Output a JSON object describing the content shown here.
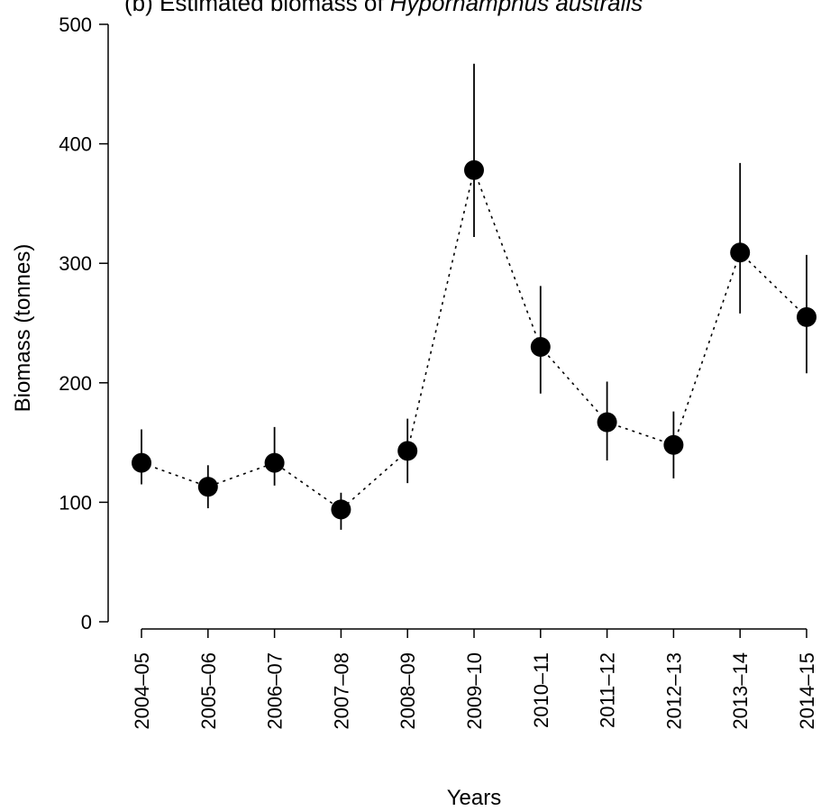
{
  "chart_data": {
    "type": "line",
    "title_plain": "(b) Estimated biomass of ",
    "title_italic": "Hyporhamphus australis",
    "xlabel": "Years",
    "ylabel": "Biomass (tonnes)",
    "ylim": [
      0,
      500
    ],
    "yticks": [
      0,
      100,
      200,
      300,
      400,
      500
    ],
    "grid": false,
    "legend": "none",
    "line_style": "dotted",
    "marker_color": "#000000",
    "categories": [
      "2004–05",
      "2005–06",
      "2006–07",
      "2007–08",
      "2008–09",
      "2009–10",
      "2010–11",
      "2011–12",
      "2012–13",
      "2013–14",
      "2014–15"
    ],
    "series": [
      {
        "values": [
          133,
          113,
          133,
          94,
          143,
          378,
          230,
          167,
          148,
          309,
          255
        ],
        "lower": [
          115,
          95,
          114,
          77,
          116,
          322,
          191,
          135,
          120,
          258,
          208
        ],
        "upper": [
          161,
          131,
          163,
          108,
          170,
          467,
          281,
          201,
          176,
          384,
          307
        ]
      }
    ]
  }
}
